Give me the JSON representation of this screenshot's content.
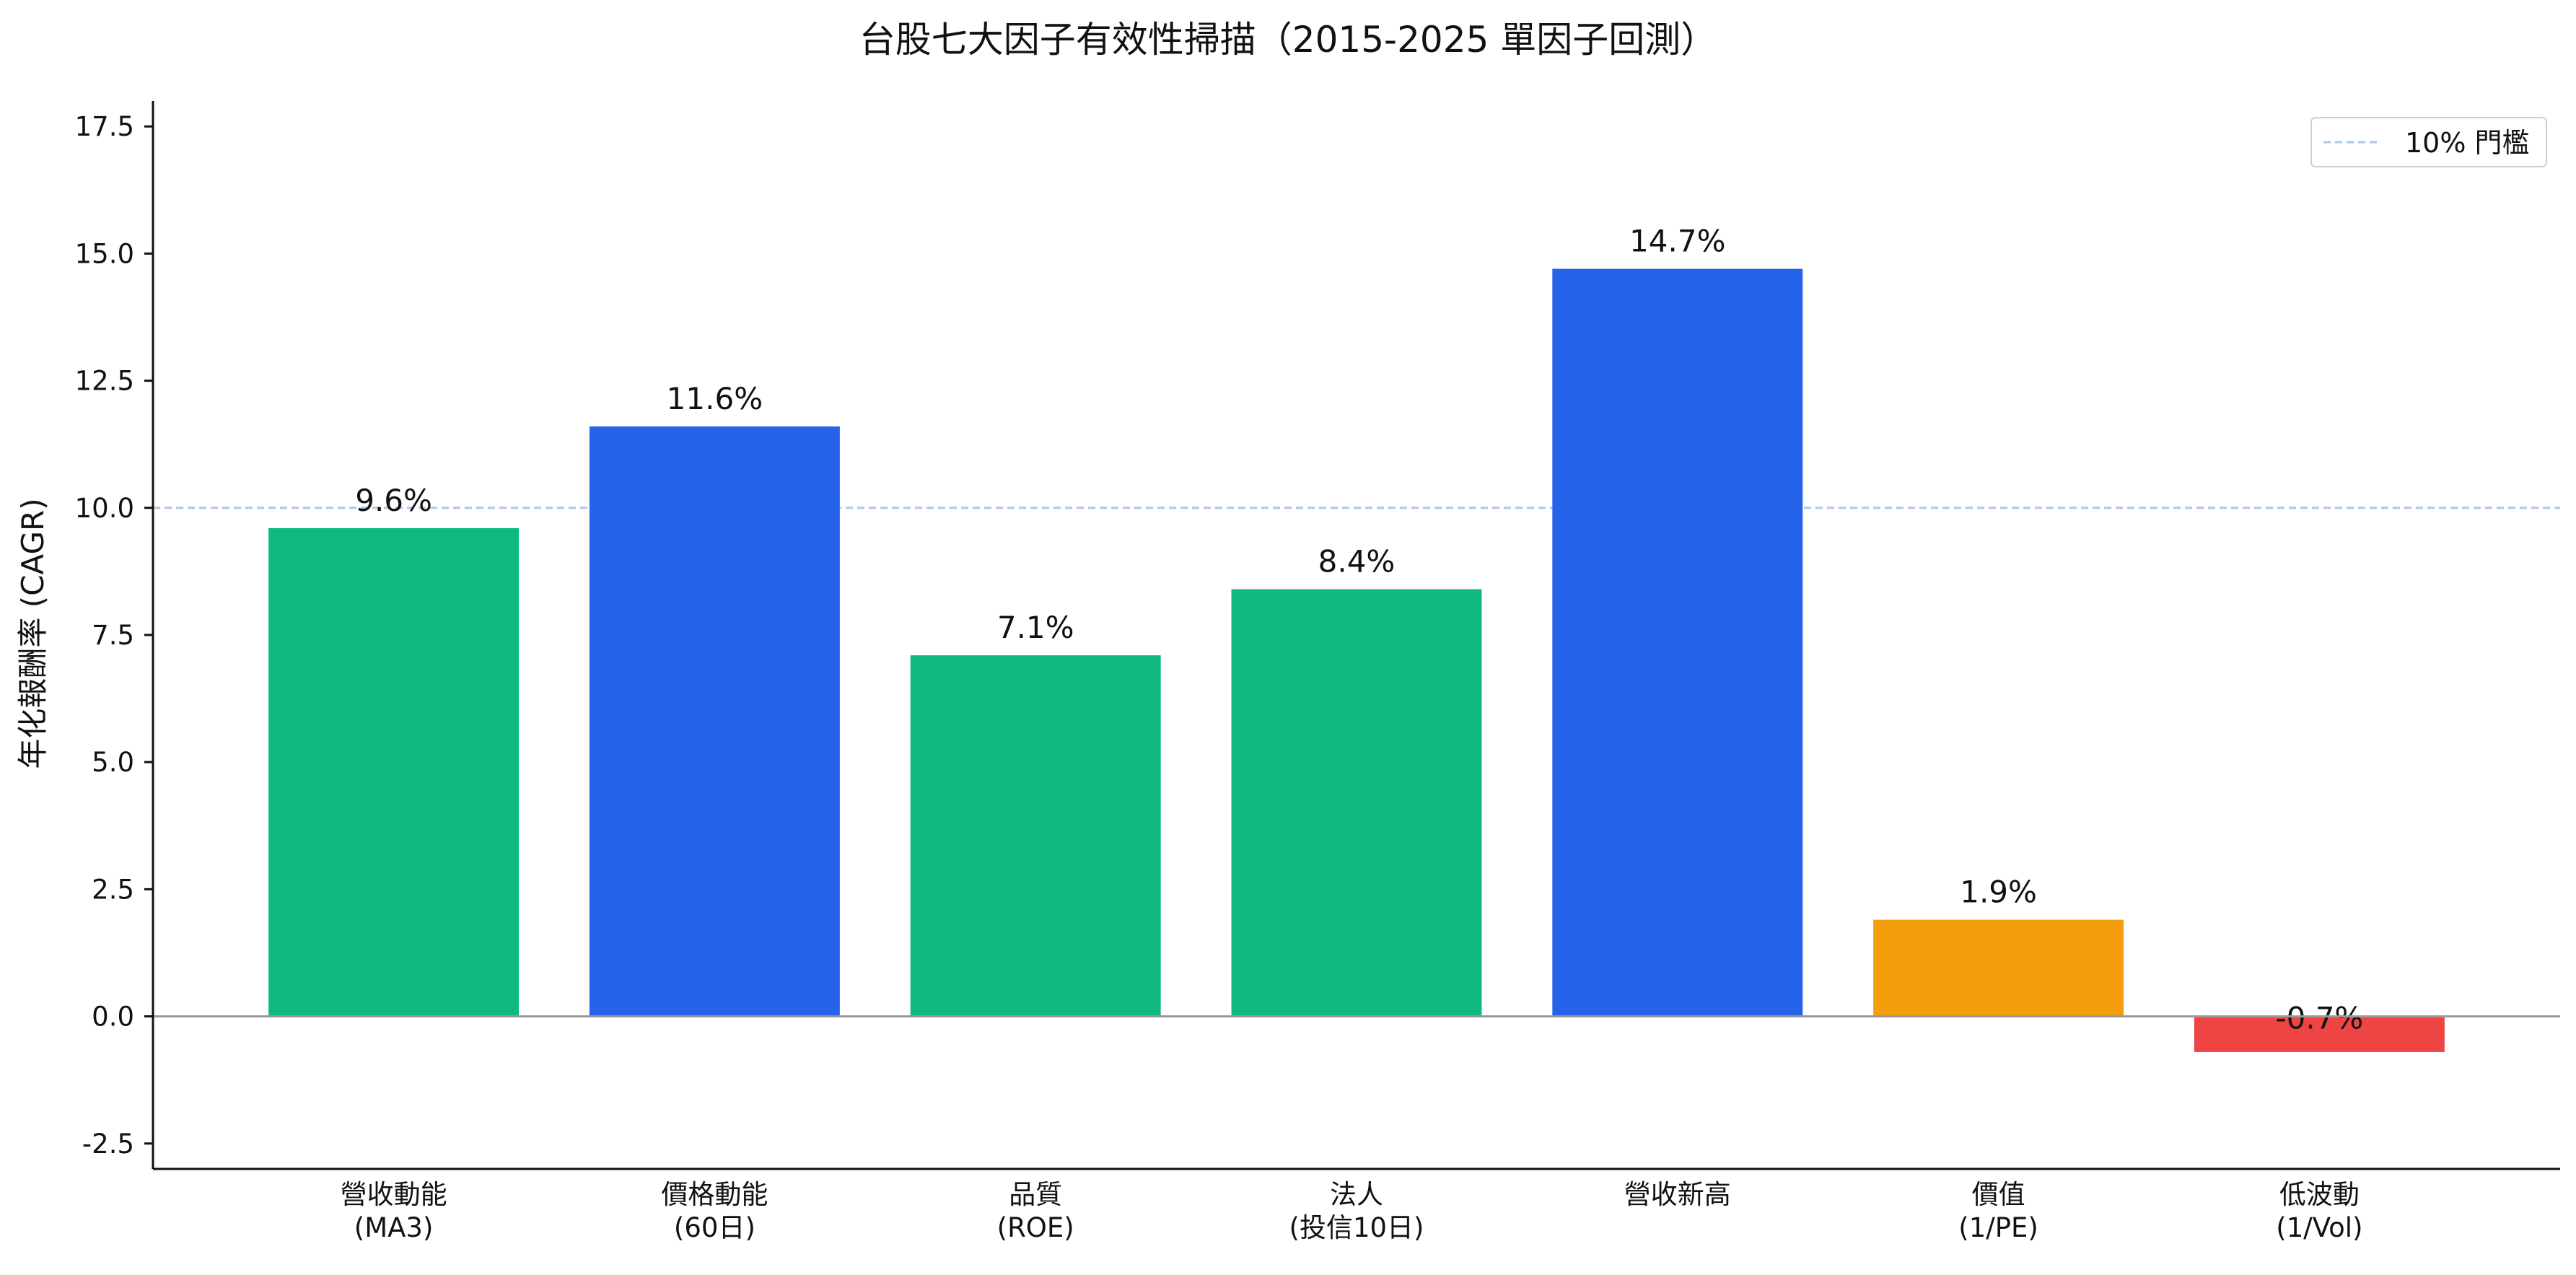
{
  "chart_data": {
    "type": "bar",
    "title": "台股七大因子有效性掃描（2015-2025 單因子回測）",
    "ylabel": "年化報酬率 (CAGR)",
    "xlabel": "",
    "ylim": [
      -3.0,
      18.0
    ],
    "yticks": [
      "-2.5",
      "0.0",
      "2.5",
      "5.0",
      "7.5",
      "10.0",
      "12.5",
      "15.0",
      "17.5"
    ],
    "ytick_values": [
      -2.5,
      0.0,
      2.5,
      5.0,
      7.5,
      10.0,
      12.5,
      15.0,
      17.5
    ],
    "categories": [
      [
        "營收動能",
        "(MA3)"
      ],
      [
        "價格動能",
        "(60日)"
      ],
      [
        "品質",
        "(ROE)"
      ],
      [
        "法人",
        "(投信10日)"
      ],
      [
        "營收新高"
      ],
      [
        "價值",
        "(1/PE)"
      ],
      [
        "低波動",
        "(1/Vol)"
      ]
    ],
    "values": [
      9.6,
      11.6,
      7.1,
      8.4,
      14.7,
      1.9,
      -0.7
    ],
    "value_labels": [
      "9.6%",
      "11.6%",
      "7.1%",
      "8.4%",
      "14.7%",
      "1.9%",
      "-0.7%"
    ],
    "bar_colors": [
      "#10b981",
      "#2563eb",
      "#10b981",
      "#10b981",
      "#2563eb",
      "#f59e0b",
      "#ef4444"
    ],
    "threshold": {
      "value": 10,
      "label": "10% 門檻",
      "color": "#aec7e8"
    },
    "legend_position": "top-right",
    "grid": false
  }
}
